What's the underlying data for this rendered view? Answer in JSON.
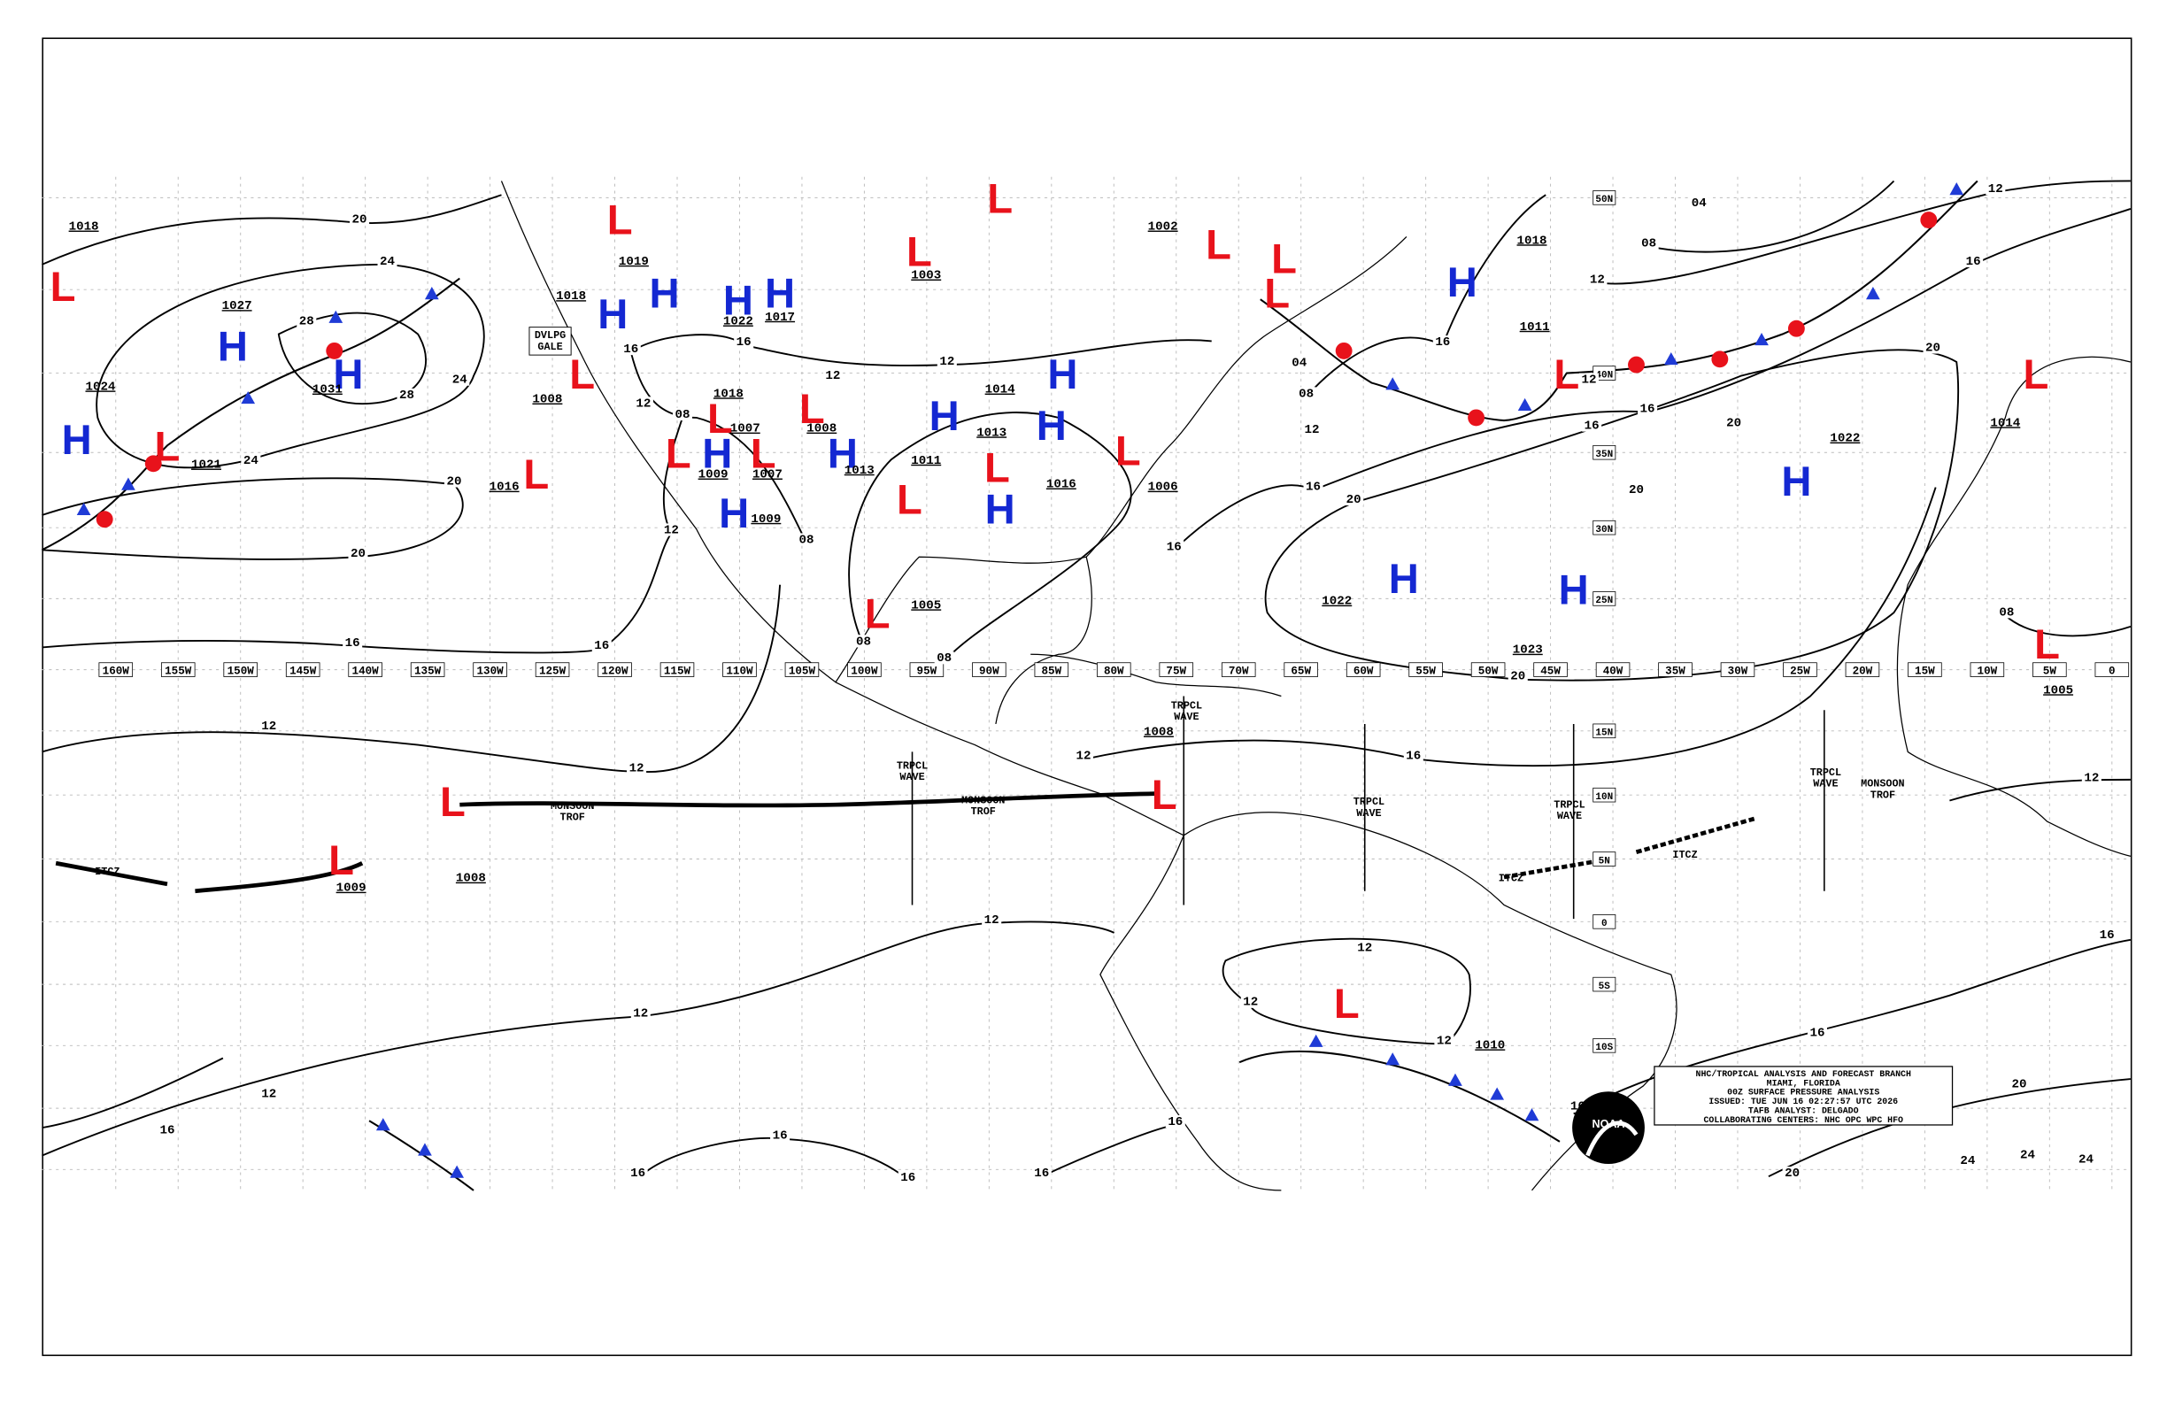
{
  "map": {
    "longitude_labels": [
      "160W",
      "155W",
      "150W",
      "145W",
      "140W",
      "135W",
      "130W",
      "125W",
      "120W",
      "115W",
      "110W",
      "105W",
      "100W",
      "95W",
      "90W",
      "85W",
      "80W",
      "75W",
      "70W",
      "65W",
      "60W",
      "55W",
      "50W",
      "45W",
      "40W",
      "35W",
      "30W",
      "25W",
      "20W",
      "15W",
      "10W",
      "5W",
      "0"
    ],
    "latitude_labels": [
      "50N",
      "40N",
      "35N",
      "30N",
      "25N",
      "15N",
      "10N",
      "5N",
      "0",
      "5S",
      "10S"
    ],
    "centers": [
      "H",
      "H",
      "H",
      "H",
      "H",
      "H",
      "H",
      "H",
      "H",
      "H",
      "H",
      "H",
      "H",
      "H",
      "H",
      "H",
      "H",
      "H",
      "L",
      "L",
      "L",
      "L",
      "L",
      "L",
      "L",
      "L",
      "L",
      "L",
      "L",
      "L",
      "L",
      "L",
      "L",
      "L",
      "L",
      "L",
      "L",
      "L",
      "L",
      "L",
      "L",
      "L",
      "L"
    ],
    "pressures": [
      "1018",
      "1027",
      "1024",
      "1031",
      "1021",
      "1016",
      "1008",
      "1019",
      "1018",
      "1022",
      "1017",
      "1018",
      "1007",
      "1008",
      "1009",
      "1007",
      "1009",
      "1013",
      "1011",
      "1013",
      "1014",
      "1003",
      "1002",
      "1005",
      "1006",
      "1016",
      "1018",
      "1011",
      "1022",
      "1014",
      "1022",
      "1023",
      "1005",
      "1008",
      "1009",
      "1008",
      "1010"
    ],
    "isobar_values": [
      "20",
      "24",
      "28",
      "28",
      "24",
      "24",
      "20",
      "20",
      "16",
      "16",
      "12",
      "12",
      "12",
      "12",
      "12",
      "16",
      "16",
      "16",
      "16",
      "16",
      "16",
      "12",
      "12",
      "12",
      "16",
      "16",
      "16",
      "20",
      "24",
      "24",
      "24",
      "20",
      "12",
      "08",
      "20",
      "20",
      "20",
      "20",
      "16",
      "16",
      "16",
      "12",
      "12",
      "08",
      "04",
      "16",
      "20",
      "16",
      "16",
      "08",
      "04",
      "12",
      "12",
      "08",
      "08",
      "08",
      "12",
      "12",
      "08",
      "16",
      "16",
      "12",
      "12",
      "12",
      "16"
    ],
    "annotations": [
      [
        "MONSOON",
        "TROF"
      ],
      [
        "MONSOON",
        "TROF"
      ],
      [
        "MONSOON",
        "TROF"
      ],
      [
        "ITCZ"
      ],
      [
        "ITCZ"
      ],
      [
        "ITCZ"
      ],
      [
        "TRPCL",
        "WAVE"
      ],
      [
        "TRPCL",
        "WAVE"
      ],
      [
        "TRPCL",
        "WAVE"
      ],
      [
        "TRPCL",
        "WAVE"
      ],
      [
        "TRPCL",
        "WAVE"
      ],
      [
        "DVLPG",
        "GALE"
      ]
    ]
  },
  "title_block": {
    "lines": [
      "NHC/TROPICAL ANALYSIS AND FORECAST BRANCH",
      "MIAMI, FLORIDA",
      "00Z SURFACE PRESSURE ANALYSIS",
      "ISSUED: TUE JUN 16 02:27:57 UTC 2026",
      "TAFB ANALYST: DELGADO",
      "COLLABORATING CENTERS: NHC OPC WPC HFO"
    ]
  },
  "logo": "NOAA"
}
